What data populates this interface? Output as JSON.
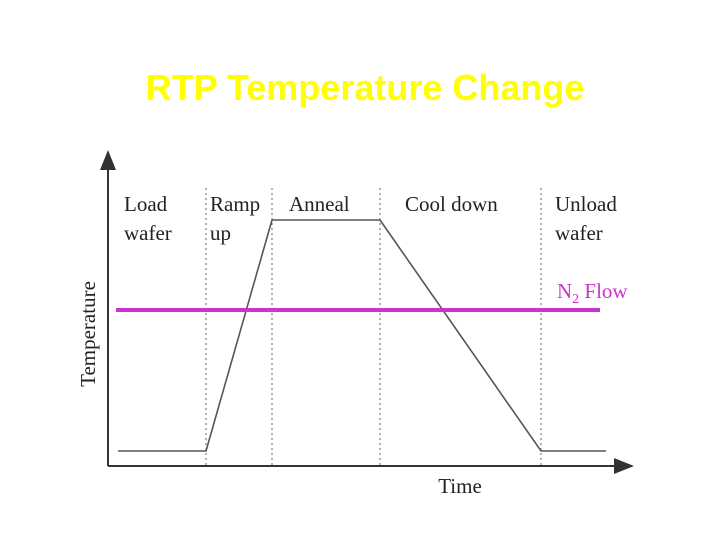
{
  "title": "RTP Temperature Change",
  "phases": [
    {
      "line1": "Load",
      "line2": "wafer"
    },
    {
      "line1": "Ramp",
      "line2": "up"
    },
    {
      "line1": "Anneal",
      "line2": ""
    },
    {
      "line1": "Cool down",
      "line2": ""
    },
    {
      "line1": "Unload",
      "line2": "wafer"
    }
  ],
  "y_axis_label": "Temperature",
  "x_axis_label": "Time",
  "flow": {
    "label_main": "N",
    "label_sub": "2",
    "label_rest": " Flow",
    "color": "#cc33cc"
  },
  "colors": {
    "title": "#ffff00",
    "profile": "#555555",
    "axis": "#333333",
    "divider": "#666666"
  }
}
